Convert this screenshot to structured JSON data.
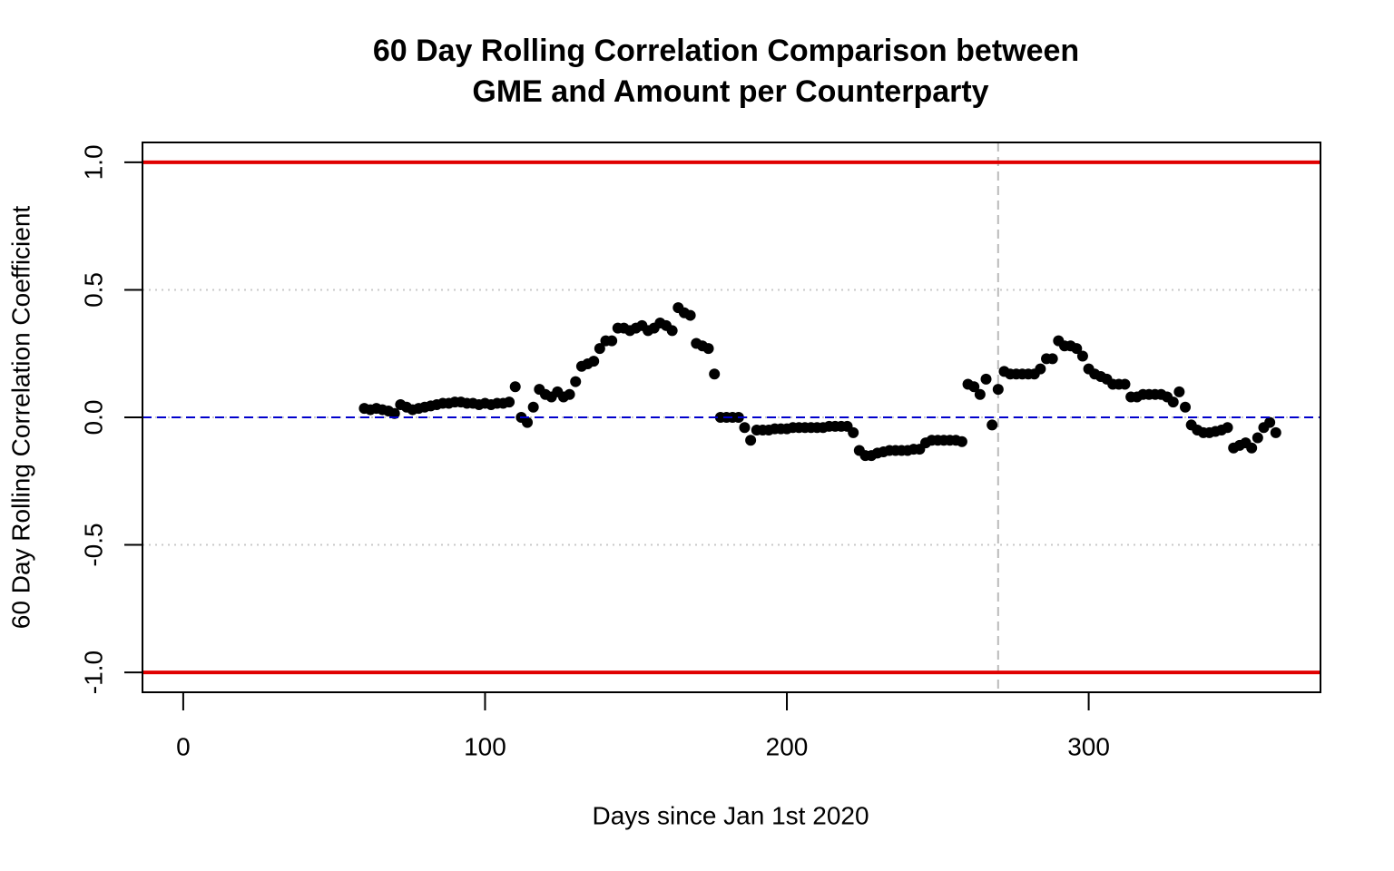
{
  "chart_data": {
    "type": "scatter",
    "title": [
      "60 Day Rolling Correlation Comparison between",
      "GME and Amount per Counterparty"
    ],
    "x_label": "Days since Jan 1st 2020",
    "y_label": "60 Day Rolling Correlation Coefficient",
    "xlim": [
      -13.5,
      376.8
    ],
    "ylim": [
      -1.078,
      1.078
    ],
    "xticks": [
      0,
      100,
      200,
      300
    ],
    "yticks": [
      {
        "value": -1,
        "label": "-1.0"
      },
      {
        "value": -0.5,
        "label": "-0.5"
      },
      {
        "value": 0,
        "label": "0.0"
      },
      {
        "value": 0.5,
        "label": "0.5"
      },
      {
        "value": 1,
        "label": "1.0"
      }
    ],
    "grid": true,
    "color": "#000000",
    "hlines": [
      {
        "value": 1,
        "color": "#e00000",
        "style": "solid"
      },
      {
        "value": -1,
        "color": "#e00000",
        "style": "solid"
      },
      {
        "value": 0,
        "color": "#0000cc",
        "style": "dashed"
      }
    ],
    "vlines": [
      {
        "value": 270,
        "color": "#bbbbbb",
        "style": "dashed"
      }
    ],
    "x": [
      60,
      62,
      64,
      66,
      68,
      70,
      72,
      74,
      76,
      78,
      80,
      82,
      84,
      86,
      88,
      90,
      92,
      94,
      96,
      98,
      100,
      102,
      104,
      106,
      108,
      110,
      112,
      114,
      116,
      118,
      120,
      122,
      124,
      126,
      128,
      130,
      132,
      134,
      136,
      138,
      140,
      142,
      144,
      146,
      148,
      150,
      152,
      154,
      156,
      158,
      160,
      162,
      164,
      166,
      168,
      170,
      172,
      174,
      176,
      178,
      180,
      182,
      184,
      186,
      188,
      190,
      192,
      194,
      196,
      198,
      200,
      202,
      204,
      206,
      208,
      210,
      212,
      214,
      216,
      218,
      220,
      222,
      224,
      226,
      228,
      230,
      232,
      234,
      236,
      238,
      240,
      242,
      244,
      246,
      248,
      250,
      252,
      254,
      256,
      258,
      260,
      262,
      264,
      266,
      268,
      270,
      272,
      274,
      276,
      278,
      280,
      282,
      284,
      286,
      288,
      290,
      292,
      294,
      296,
      298,
      300,
      302,
      304,
      306,
      308,
      310,
      312,
      314,
      316,
      318,
      320,
      322,
      324,
      326,
      328,
      330,
      332,
      334,
      336,
      338,
      340,
      342,
      344,
      346,
      348,
      350,
      352,
      354,
      356,
      358,
      360,
      362
    ],
    "values": [
      0.035,
      0.03,
      0.035,
      0.03,
      0.025,
      0.015,
      0.05,
      0.04,
      0.03,
      0.035,
      0.04,
      0.045,
      0.05,
      0.055,
      0.055,
      0.06,
      0.06,
      0.055,
      0.055,
      0.05,
      0.055,
      0.05,
      0.055,
      0.055,
      0.06,
      0.12,
      0.0,
      -0.02,
      0.04,
      0.11,
      0.09,
      0.08,
      0.1,
      0.08,
      0.09,
      0.14,
      0.2,
      0.21,
      0.22,
      0.27,
      0.3,
      0.3,
      0.35,
      0.35,
      0.34,
      0.35,
      0.36,
      0.34,
      0.35,
      0.37,
      0.36,
      0.34,
      0.43,
      0.41,
      0.4,
      0.29,
      0.28,
      0.27,
      0.17,
      0.0,
      0.0,
      0.0,
      0.0,
      -0.04,
      -0.09,
      -0.05,
      -0.05,
      -0.05,
      -0.045,
      -0.045,
      -0.045,
      -0.04,
      -0.04,
      -0.04,
      -0.04,
      -0.04,
      -0.04,
      -0.035,
      -0.035,
      -0.035,
      -0.035,
      -0.06,
      -0.13,
      -0.15,
      -0.15,
      -0.14,
      -0.135,
      -0.13,
      -0.13,
      -0.13,
      -0.13,
      -0.125,
      -0.125,
      -0.1,
      -0.09,
      -0.09,
      -0.09,
      -0.09,
      -0.09,
      -0.095,
      0.13,
      0.12,
      0.09,
      0.15,
      -0.03,
      0.11,
      0.18,
      0.17,
      0.17,
      0.17,
      0.17,
      0.17,
      0.19,
      0.23,
      0.23,
      0.3,
      0.28,
      0.28,
      0.27,
      0.24,
      0.19,
      0.17,
      0.16,
      0.15,
      0.13,
      0.13,
      0.13,
      0.08,
      0.08,
      0.09,
      0.09,
      0.09,
      0.09,
      0.08,
      0.06,
      0.1,
      0.04,
      -0.03,
      -0.05,
      -0.06,
      -0.06,
      -0.055,
      -0.05,
      -0.04,
      -0.12,
      -0.11,
      -0.1,
      -0.12,
      -0.08,
      -0.04,
      -0.02,
      -0.06
    ]
  }
}
